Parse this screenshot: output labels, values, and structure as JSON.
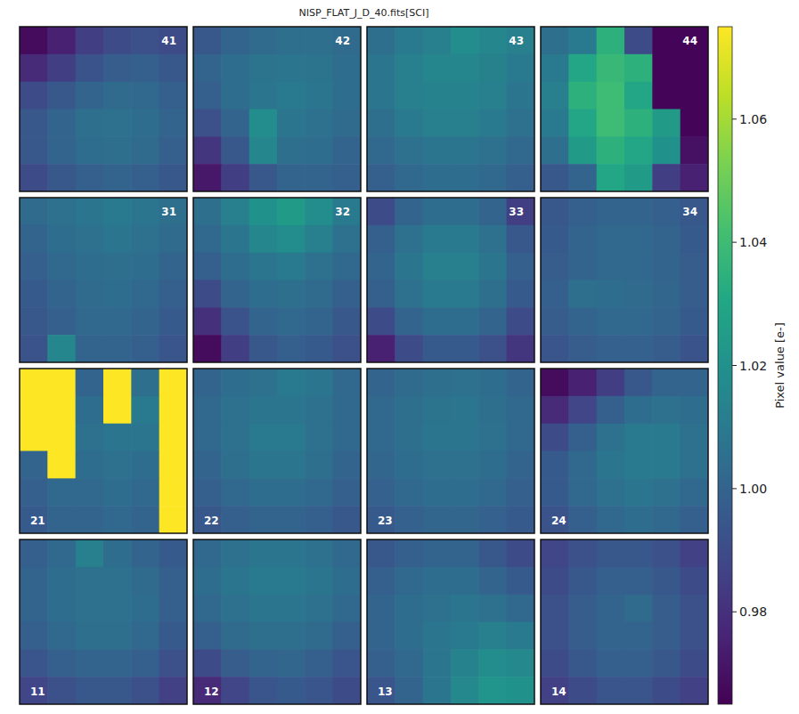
{
  "chart_data": {
    "type": "heatmap",
    "title": "NISP_FLAT_J_D_40.fits[SCI]",
    "color": "viridis",
    "tick_labels": false,
    "colorbar": {
      "label": "Pixel value [e-]",
      "range": [
        0.965,
        1.075
      ],
      "ticks": [
        0.98,
        {
          "value": 1.0,
          "label": "1.00"
        },
        1.02,
        1.04,
        1.06
      ]
    },
    "panels": [
      {
        "label": "41",
        "values": [
          [
            0.968,
            0.975,
            0.985,
            0.99,
            0.992,
            0.99
          ],
          [
            0.978,
            0.985,
            0.993,
            0.997,
            0.998,
            0.995
          ],
          [
            0.99,
            0.995,
            1.0,
            1.003,
            1.002,
            0.998
          ],
          [
            0.995,
            1.0,
            1.005,
            1.006,
            1.004,
            1.0
          ],
          [
            0.995,
            1.0,
            1.004,
            1.005,
            1.003,
            0.998
          ],
          [
            0.99,
            0.995,
            0.998,
            1.0,
            0.998,
            0.995
          ]
        ]
      },
      {
        "label": "42",
        "values": [
          [
            0.995,
            1.0,
            1.003,
            1.005,
            1.005,
            1.003
          ],
          [
            1.0,
            1.004,
            1.007,
            1.008,
            1.007,
            1.004
          ],
          [
            0.998,
            1.004,
            1.008,
            1.01,
            1.008,
            1.004
          ],
          [
            0.992,
            1.0,
            1.018,
            1.008,
            1.006,
            1.003
          ],
          [
            0.982,
            0.995,
            1.015,
            1.005,
            1.004,
            1.0
          ],
          [
            0.972,
            0.985,
            0.995,
            1.0,
            1.0,
            0.998
          ]
        ]
      },
      {
        "label": "43",
        "values": [
          [
            1.005,
            1.01,
            1.012,
            1.018,
            1.015,
            1.012
          ],
          [
            1.008,
            1.012,
            1.015,
            1.015,
            1.013,
            1.01
          ],
          [
            1.008,
            1.012,
            1.014,
            1.014,
            1.012,
            1.008
          ],
          [
            1.005,
            1.01,
            1.012,
            1.012,
            1.01,
            1.006
          ],
          [
            1.002,
            1.006,
            1.008,
            1.008,
            1.006,
            1.002
          ],
          [
            0.998,
            1.002,
            1.004,
            1.004,
            1.002,
            0.998
          ]
        ]
      },
      {
        "label": "44",
        "values": [
          [
            1.005,
            1.01,
            1.035,
            0.99,
            0.966,
            0.966
          ],
          [
            1.01,
            1.03,
            1.038,
            1.035,
            0.966,
            0.966
          ],
          [
            1.012,
            1.035,
            1.04,
            1.03,
            0.966,
            0.966
          ],
          [
            1.01,
            1.03,
            1.04,
            1.035,
            1.025,
            0.966
          ],
          [
            1.005,
            1.025,
            1.035,
            1.03,
            1.02,
            0.97
          ],
          [
            0.995,
            1.0,
            1.03,
            1.025,
            0.985,
            0.975
          ]
        ]
      },
      {
        "label": "31",
        "values": [
          [
            1.003,
            1.006,
            1.008,
            1.01,
            1.008,
            1.005
          ],
          [
            1.0,
            1.004,
            1.006,
            1.008,
            1.006,
            1.003
          ],
          [
            0.998,
            1.002,
            1.004,
            1.005,
            1.004,
            1.0
          ],
          [
            0.996,
            1.0,
            1.003,
            1.004,
            1.002,
            0.998
          ],
          [
            0.995,
            0.998,
            1.002,
            1.002,
            1.0,
            0.996
          ],
          [
            0.993,
            1.015,
            1.0,
            1.0,
            0.998,
            0.994
          ]
        ]
      },
      {
        "label": "32",
        "values": [
          [
            1.005,
            1.012,
            1.02,
            1.025,
            1.018,
            1.01
          ],
          [
            1.002,
            1.008,
            1.015,
            1.018,
            1.012,
            1.006
          ],
          [
            0.998,
            1.004,
            1.008,
            1.01,
            1.006,
            1.002
          ],
          [
            0.99,
            1.0,
            1.004,
            1.005,
            1.003,
            0.998
          ],
          [
            0.98,
            0.993,
            1.0,
            1.002,
            1.0,
            0.995
          ],
          [
            0.968,
            0.985,
            0.995,
            0.998,
            0.996,
            0.992
          ]
        ]
      },
      {
        "label": "33",
        "values": [
          [
            0.99,
            1.0,
            1.004,
            1.004,
            1.0,
            0.985
          ],
          [
            0.998,
            1.006,
            1.01,
            1.01,
            1.006,
            0.995
          ],
          [
            1.0,
            1.008,
            1.012,
            1.012,
            1.008,
            0.998
          ],
          [
            0.998,
            1.006,
            1.01,
            1.01,
            1.005,
            0.996
          ],
          [
            0.99,
            1.0,
            1.004,
            1.004,
            1.0,
            0.99
          ],
          [
            0.975,
            0.99,
            0.996,
            0.996,
            0.992,
            0.982
          ]
        ]
      },
      {
        "label": "34",
        "values": [
          [
            0.995,
            0.998,
            1.0,
            1.0,
            0.998,
            0.995
          ],
          [
            0.996,
            1.0,
            1.002,
            1.002,
            1.0,
            0.996
          ],
          [
            0.997,
            1.0,
            1.002,
            1.002,
            1.0,
            0.997
          ],
          [
            0.998,
            1.005,
            1.004,
            1.003,
            1.001,
            0.997
          ],
          [
            0.997,
            1.0,
            1.002,
            1.002,
            1.0,
            0.996
          ],
          [
            0.994,
            0.997,
            0.999,
            0.999,
            0.997,
            0.993
          ]
        ]
      },
      {
        "label": "21",
        "values": [
          [
            1.075,
            1.075,
            1.0,
            1.075,
            1.005,
            1.075
          ],
          [
            1.075,
            1.075,
            1.004,
            1.075,
            1.01,
            1.075
          ],
          [
            1.075,
            1.075,
            1.006,
            1.008,
            1.008,
            1.075
          ],
          [
            1.0,
            1.075,
            1.004,
            1.006,
            1.004,
            1.075
          ],
          [
            0.998,
            1.002,
            1.002,
            1.004,
            1.002,
            1.075
          ],
          [
            0.996,
            1.0,
            1.0,
            1.002,
            1.0,
            1.075
          ]
        ]
      },
      {
        "label": "22",
        "values": [
          [
            1.0,
            1.004,
            1.006,
            1.01,
            1.008,
            1.002
          ],
          [
            1.002,
            1.006,
            1.008,
            1.008,
            1.006,
            1.002
          ],
          [
            1.002,
            1.006,
            1.01,
            1.01,
            1.006,
            1.002
          ],
          [
            1.0,
            1.005,
            1.008,
            1.008,
            1.005,
            1.0
          ],
          [
            0.998,
            1.002,
            1.004,
            1.004,
            1.002,
            0.998
          ],
          [
            0.995,
            0.998,
            1.0,
            1.0,
            0.998,
            0.995
          ]
        ]
      },
      {
        "label": "23",
        "values": [
          [
            1.0,
            1.003,
            1.005,
            1.006,
            1.004,
            1.0
          ],
          [
            1.002,
            1.005,
            1.007,
            1.008,
            1.005,
            1.002
          ],
          [
            1.002,
            1.005,
            1.008,
            1.008,
            1.006,
            1.002
          ],
          [
            1.001,
            1.004,
            1.006,
            1.006,
            1.004,
            1.0
          ],
          [
            0.999,
            1.002,
            1.004,
            1.004,
            1.002,
            0.998
          ],
          [
            0.996,
            0.999,
            1.001,
            1.001,
            0.999,
            0.996
          ]
        ]
      },
      {
        "label": "24",
        "values": [
          [
            0.968,
            0.975,
            0.985,
            0.995,
            1.0,
            1.0
          ],
          [
            0.978,
            0.988,
            0.998,
            1.004,
            1.006,
            1.004
          ],
          [
            0.99,
            0.998,
            1.006,
            1.01,
            1.01,
            1.006
          ],
          [
            0.996,
            1.002,
            1.008,
            1.01,
            1.01,
            1.006
          ],
          [
            0.996,
            1.002,
            1.006,
            1.008,
            1.006,
            1.002
          ],
          [
            0.993,
            0.998,
            1.002,
            1.004,
            1.002,
            0.998
          ]
        ]
      },
      {
        "label": "11",
        "values": [
          [
            0.998,
            1.002,
            1.012,
            1.004,
            1.0,
            0.996
          ],
          [
            1.0,
            1.004,
            1.006,
            1.006,
            1.003,
            0.998
          ],
          [
            1.0,
            1.004,
            1.006,
            1.006,
            1.004,
            0.998
          ],
          [
            0.998,
            1.002,
            1.005,
            1.005,
            1.002,
            0.996
          ],
          [
            0.994,
            0.998,
            1.0,
            1.0,
            0.998,
            0.992
          ],
          [
            0.988,
            0.992,
            0.995,
            0.995,
            0.992,
            0.986
          ]
        ]
      },
      {
        "label": "12",
        "values": [
          [
            1.002,
            1.006,
            1.008,
            1.008,
            1.006,
            1.002
          ],
          [
            1.004,
            1.008,
            1.01,
            1.01,
            1.008,
            1.004
          ],
          [
            1.002,
            1.006,
            1.008,
            1.008,
            1.006,
            1.002
          ],
          [
            0.998,
            1.003,
            1.005,
            1.005,
            1.003,
            0.998
          ],
          [
            0.99,
            0.997,
            1.0,
            1.001,
            0.998,
            0.994
          ],
          [
            0.978,
            0.988,
            0.994,
            0.996,
            0.994,
            0.99
          ]
        ]
      },
      {
        "label": "13",
        "values": [
          [
            0.995,
            0.998,
            1.0,
            1.0,
            0.995,
            0.99
          ],
          [
            0.998,
            1.002,
            1.004,
            1.004,
            1.0,
            0.996
          ],
          [
            1.0,
            1.004,
            1.006,
            1.008,
            1.006,
            1.002
          ],
          [
            1.0,
            1.004,
            1.008,
            1.01,
            1.012,
            1.01
          ],
          [
            0.998,
            1.002,
            1.008,
            1.014,
            1.018,
            1.016
          ],
          [
            0.994,
            1.0,
            1.008,
            1.016,
            1.022,
            1.02
          ]
        ]
      },
      {
        "label": "14",
        "values": [
          [
            0.988,
            0.992,
            0.995,
            0.995,
            0.992,
            0.986
          ],
          [
            0.99,
            0.995,
            0.998,
            0.998,
            0.995,
            0.99
          ],
          [
            0.992,
            0.997,
            1.0,
            1.003,
            0.997,
            0.992
          ],
          [
            0.992,
            0.997,
            1.0,
            1.0,
            0.997,
            0.992
          ],
          [
            0.99,
            0.995,
            0.998,
            0.998,
            0.995,
            0.99
          ],
          [
            0.986,
            0.99,
            0.994,
            0.994,
            0.99,
            0.986
          ]
        ]
      }
    ]
  }
}
